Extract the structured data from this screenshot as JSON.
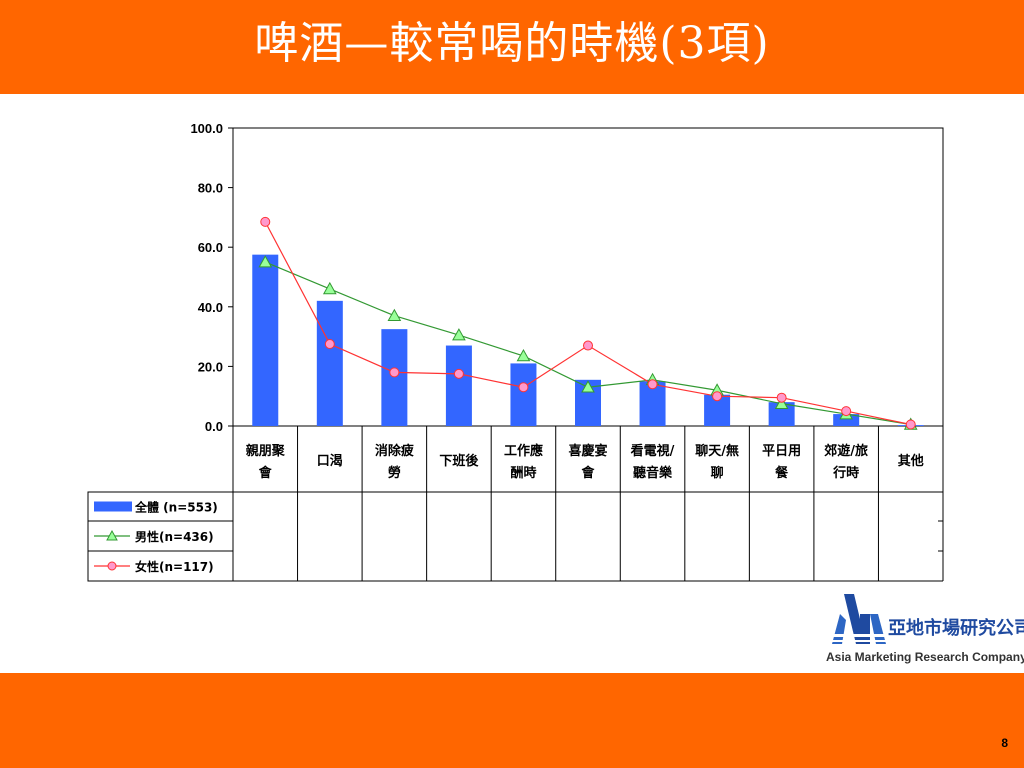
{
  "slide": {
    "title": "啤酒—較常喝的時機(3項)",
    "page_number": "8"
  },
  "logo": {
    "mark_text": "AMR",
    "chinese_name": "亞地市場研究公司",
    "english_name": "Asia Marketing Research Company"
  },
  "colors": {
    "band": "#ff6600",
    "bar": "#3366ff",
    "male_line": "#339933",
    "male_marker": "#99ff99",
    "female_line": "#ff3333",
    "female_marker": "#ff99cc"
  },
  "chart_data": {
    "type": "bar",
    "categories": [
      [
        "親朋聚",
        "會"
      ],
      [
        "口渴"
      ],
      [
        "消除疲",
        "勞"
      ],
      [
        "下班後"
      ],
      [
        "工作應",
        "酬時"
      ],
      [
        "喜慶宴",
        "會"
      ],
      [
        "看電視/",
        "聽音樂"
      ],
      [
        "聊天/無",
        "聊"
      ],
      [
        "平日用",
        "餐"
      ],
      [
        "郊遊/旅",
        "行時"
      ],
      [
        "其他"
      ]
    ],
    "series": [
      {
        "name": "全體 (n=553)",
        "type": "bar",
        "values": [
          57.5,
          42.0,
          32.5,
          27.0,
          21.0,
          15.5,
          15.0,
          10.5,
          8.0,
          4.0,
          0.3
        ]
      },
      {
        "name": "男性(n=436)",
        "type": "line",
        "marker": "triangle",
        "values": [
          55.0,
          46.0,
          37.0,
          30.5,
          23.5,
          13.0,
          15.5,
          12.0,
          7.5,
          4.0,
          0.5
        ]
      },
      {
        "name": "女性(n=117)",
        "type": "line",
        "marker": "circle",
        "values": [
          68.5,
          27.5,
          18.0,
          17.5,
          13.0,
          27.0,
          14.0,
          10.0,
          9.5,
          5.0,
          0.5
        ]
      }
    ],
    "yticks": [
      "0.0",
      "20.0",
      "40.0",
      "60.0",
      "80.0",
      "100.0"
    ],
    "ylim": [
      0,
      100
    ],
    "grid": false,
    "legend": "bottom-left data-table"
  }
}
